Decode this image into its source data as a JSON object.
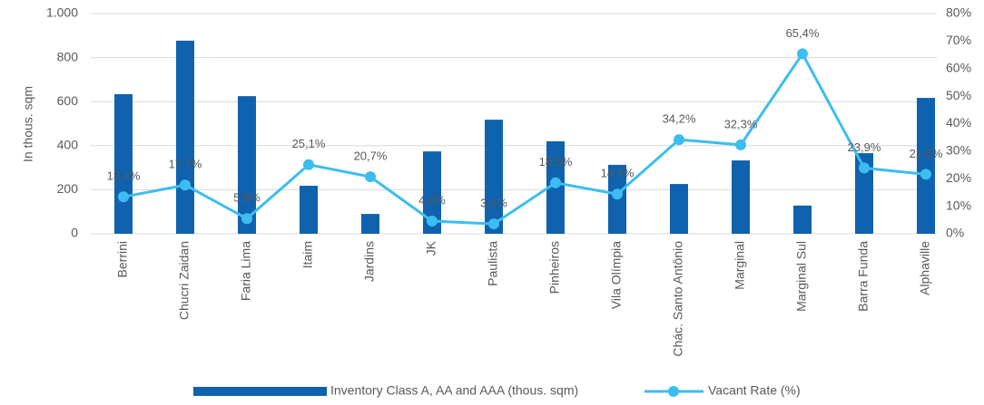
{
  "chart_data": {
    "type": "bar",
    "y_label": "In thous. sqm",
    "categories": [
      "Berrini",
      "Chucri Zaidan",
      "Faria Lima",
      "Itaim",
      "Jardins",
      "JK",
      "Paulista",
      "Pinheiros",
      "Vila Olímpia",
      "Chác. Santo Antônio",
      "Marginal",
      "Marginal Sul",
      "Barra Funda",
      "Alphaville"
    ],
    "series": [
      {
        "name": "Inventory Class A, AA and AAA (thous. sqm)",
        "type": "bar",
        "color": "#0f62ae",
        "values": [
          634,
          877,
          625,
          218,
          90,
          374,
          518,
          420,
          313,
          226,
          333,
          128,
          366,
          617
        ]
      },
      {
        "name": "Vacant Rate (%)",
        "type": "line",
        "axis": "y2",
        "color": "#3cbdf0",
        "values": [
          13.4,
          17.7,
          5.5,
          25.1,
          20.7,
          4.6,
          3.6,
          18.5,
          14.4,
          34.2,
          32.3,
          65.4,
          23.9,
          21.6
        ],
        "value_labels": [
          "13,4%",
          "17,7%",
          "5,5%",
          "25,1%",
          "20,7%",
          "4,6%",
          "3,6%",
          "18,5%",
          "14,4%",
          "34,2%",
          "32,3%",
          "65,4%",
          "23,9%",
          "21,6%"
        ]
      }
    ],
    "ylim": [
      0,
      1000
    ],
    "yticks": [
      0,
      200,
      400,
      600,
      800,
      {
        "value": 1000,
        "label": "1.000"
      }
    ],
    "y2lim": [
      0,
      80
    ],
    "y2ticks": [
      {
        "value": 0,
        "label": "0%"
      },
      {
        "value": 10,
        "label": "10%"
      },
      {
        "value": 20,
        "label": "20%"
      },
      {
        "value": 30,
        "label": "30%"
      },
      {
        "value": 40,
        "label": "40%"
      },
      {
        "value": 50,
        "label": "50%"
      },
      {
        "value": 60,
        "label": "60%"
      },
      {
        "value": 70,
        "label": "70%"
      },
      {
        "value": 80,
        "label": "80%"
      }
    ],
    "grid": true,
    "legend": "bottom"
  }
}
